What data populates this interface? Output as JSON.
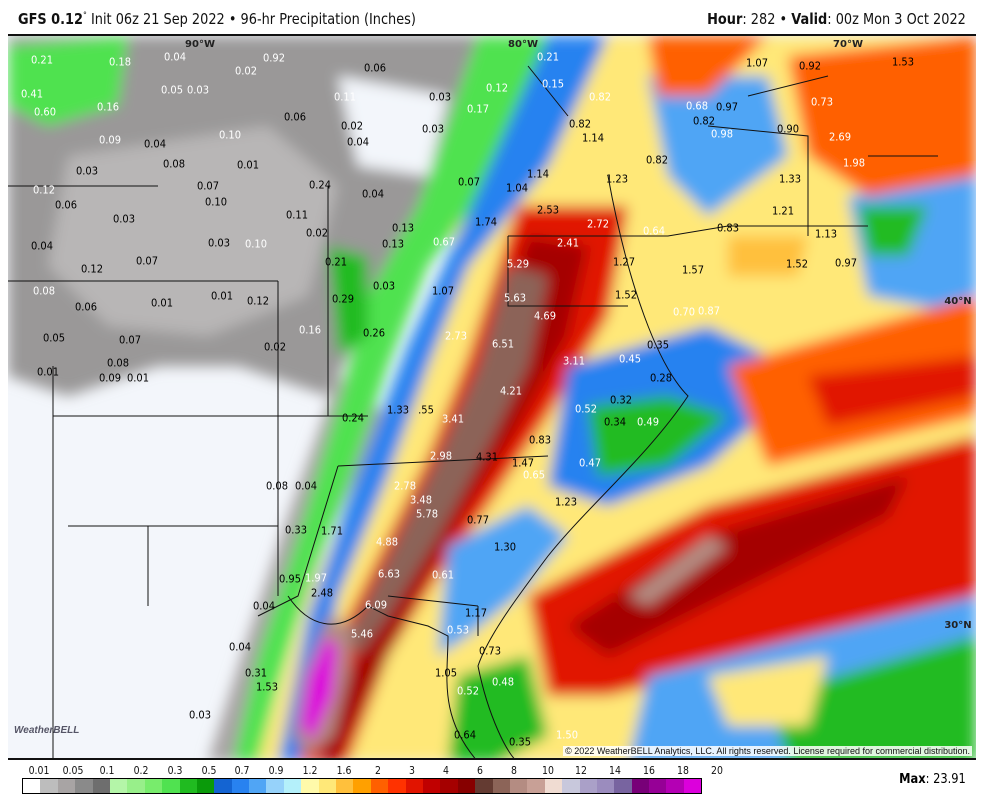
{
  "header": {
    "model": "GFS 0.12",
    "degree": "°",
    "init": " Init 06z 21 Sep 2022 • 96-hr Precipitation (Inches)",
    "hour_label": "Hour",
    "hour": ": 282 • ",
    "valid_label": "Valid",
    "valid": ": 00z Mon 3 Oct 2022"
  },
  "map": {
    "grid_labels": [
      "90°W",
      "80°W",
      "70°W",
      "40°N",
      "30°N"
    ],
    "values": [
      "0.21",
      "0.18",
      "0.04",
      "0.02",
      "0.92",
      "0.41",
      "0.05",
      "0.03",
      "0.06",
      "0.21",
      "0.60",
      "0.16",
      "0.11",
      "0.03",
      "0.12",
      "0.15",
      "0.82",
      "1.07",
      "0.92",
      "1.53",
      "0.09",
      "0.04",
      "0.10",
      "0.06",
      "0.02",
      "0.04",
      "0.03",
      "0.17",
      "0.82",
      "1.14",
      "0.97",
      "0.68",
      "0.82",
      "0.98",
      "0.73",
      "0.90",
      "2.69",
      "0.03",
      "0.08",
      "0.01",
      "0.07",
      "0.10",
      "0.24",
      "0.04",
      "0.07",
      "1.14",
      "1.04",
      "1.23",
      "0.82",
      "1.98",
      "1.33",
      "0.12",
      "0.06",
      "0.03",
      "0.11",
      "2.53",
      "2.72",
      "1.74",
      "0.13",
      "0.02",
      "0.03",
      "0.10",
      "0.04",
      "0.07",
      "0.12",
      "0.13",
      "0.67",
      "2.41",
      "0.64",
      "0.83",
      "1.21",
      "1.13",
      "0.21",
      "5.29",
      "1.27",
      "1.57",
      "1.52",
      "0.97",
      "0.08",
      "0.06",
      "0.01",
      "0.01",
      "0.12",
      "0.29",
      "0.03",
      "1.07",
      "5.63",
      "1.52",
      "0.87",
      "0.70",
      "4.69",
      "0.05",
      "0.07",
      "0.16",
      "0.26",
      "2.73",
      "6.51",
      "3.11",
      "0.02",
      "0.45",
      "0.35",
      "0.08",
      "0.01",
      "0.09",
      "0.01",
      "0.28",
      "4.21",
      "0.32",
      "0.52",
      "0.24",
      "1.33",
      ".55",
      "3.41",
      "0.34",
      "0.49",
      "0.83",
      "2.98",
      "4.31",
      "1.47",
      "0.65",
      "0.47",
      "0.08",
      "0.04",
      "2.78",
      "3.48",
      "5.78",
      "0.77",
      "1.23",
      "0.33",
      "1.71",
      "4.88",
      "1.30",
      "0.95",
      "1.97",
      "2.48",
      "6.63",
      "0.61",
      "0.04",
      "6.09",
      "1.17",
      "5.46",
      "0.53",
      "0.04",
      "0.73",
      "0.31",
      "1.53",
      "1.05",
      "0.48",
      "0.52",
      "0.03",
      "0.64",
      "0.35",
      "1.50"
    ],
    "logo": "WeatherBELL",
    "copyright": "© 2022 WeatherBELL Analytics, LLC. All rights reserved. License required for commercial distribution."
  },
  "legend": {
    "ticks": [
      "0.01",
      "0.05",
      "0.1",
      "0.2",
      "0.3",
      "0.5",
      "0.7",
      "0.9",
      "1.2",
      "1.6",
      "2",
      "3",
      "4",
      "6",
      "8",
      "10",
      "12",
      "14",
      "16",
      "18",
      "20"
    ],
    "colors": [
      "#ffffff",
      "#bdbdbd",
      "#a8a4a4",
      "#8a8a8a",
      "#6e6e6e",
      "#b4f5a8",
      "#98ef8a",
      "#78ec6c",
      "#50e250",
      "#20bb20",
      "#0a9a0a",
      "#1464d2",
      "#2882f0",
      "#50a5f5",
      "#96d2fa",
      "#b4f0fa",
      "#fffaaa",
      "#ffe878",
      "#ffc03c",
      "#ffa000",
      "#ff6000",
      "#ff3200",
      "#e11400",
      "#c00000",
      "#a50000",
      "#870000",
      "#643b32",
      "#8c6458",
      "#b48c82",
      "#c8a096",
      "#f0dcd2",
      "#c8c8dc",
      "#aaa0c8",
      "#9b8cbe",
      "#7864a0",
      "#780078",
      "#960096",
      "#b400b4",
      "#dc00dc"
    ],
    "max_label": "Max",
    "max_value": ": 23.91"
  }
}
